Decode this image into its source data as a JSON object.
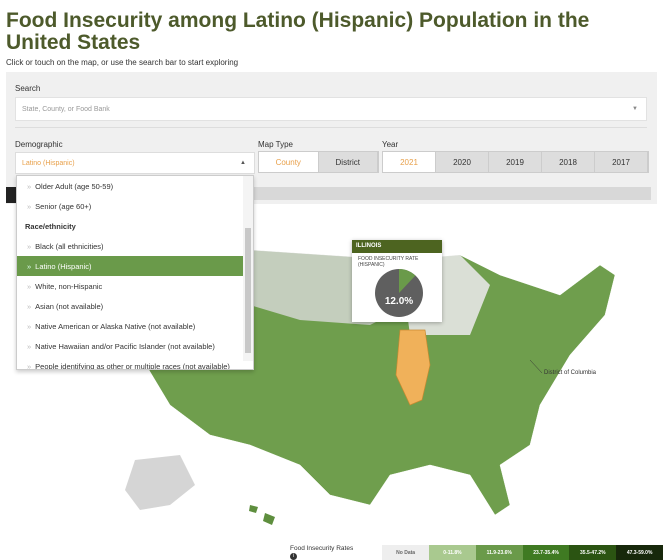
{
  "title": "Food Insecurity among Latino (Hispanic) Population in the United States",
  "subtitle": "Click or touch on the map, or use the search bar to start exploring",
  "search": {
    "label": "Search",
    "placeholder": "State, County, or Food Bank"
  },
  "demographic": {
    "label": "Demographic",
    "value": "Latino (Hispanic)",
    "options": [
      {
        "label": "Older Adult (age 50-59)"
      },
      {
        "label": "Senior (age 60+)"
      },
      {
        "group": "Race/ethnicity"
      },
      {
        "label": "Black (all ethnicities)"
      },
      {
        "label": "Latino (Hispanic)",
        "selected": true
      },
      {
        "label": "White, non-Hispanic"
      },
      {
        "label": "Asian (not available)"
      },
      {
        "label": "Native American or Alaska Native (not available)"
      },
      {
        "label": "Native Hawaiian and/or Pacific Islander (not available)"
      },
      {
        "label": "People identifying as other or multiple races (not available)"
      }
    ]
  },
  "map_type": {
    "label": "Map Type",
    "options": [
      "County",
      "District"
    ],
    "selected": "County"
  },
  "year": {
    "label": "Year",
    "options": [
      "2021",
      "2020",
      "2019",
      "2018",
      "2017"
    ],
    "selected": "2021"
  },
  "tooltip": {
    "state": "ILLINOIS",
    "metric": "FOOD INSECURITY RATE (HISPANIC)",
    "value": "12.0%",
    "fraction": 0.12
  },
  "map_label": "District of Columbia",
  "legend": {
    "title": "Food Insecurity Rates",
    "info_icon": "info-icon",
    "bins": [
      {
        "label": "No Data",
        "color": "#eeeeee"
      },
      {
        "label": "0-11.8%",
        "color": "#a9c98f"
      },
      {
        "label": "11.9-23.6%",
        "color": "#6a9a4a"
      },
      {
        "label": "23.7-35.4%",
        "color": "#3f7a22"
      },
      {
        "label": "35.5-47.2%",
        "color": "#2b5412"
      },
      {
        "label": "47.3-59.0%",
        "color": "#17280b"
      }
    ]
  },
  "colors": {
    "accent": "#e8a04a",
    "title": "#4d5a2b",
    "highlight": "#f0b15a"
  }
}
